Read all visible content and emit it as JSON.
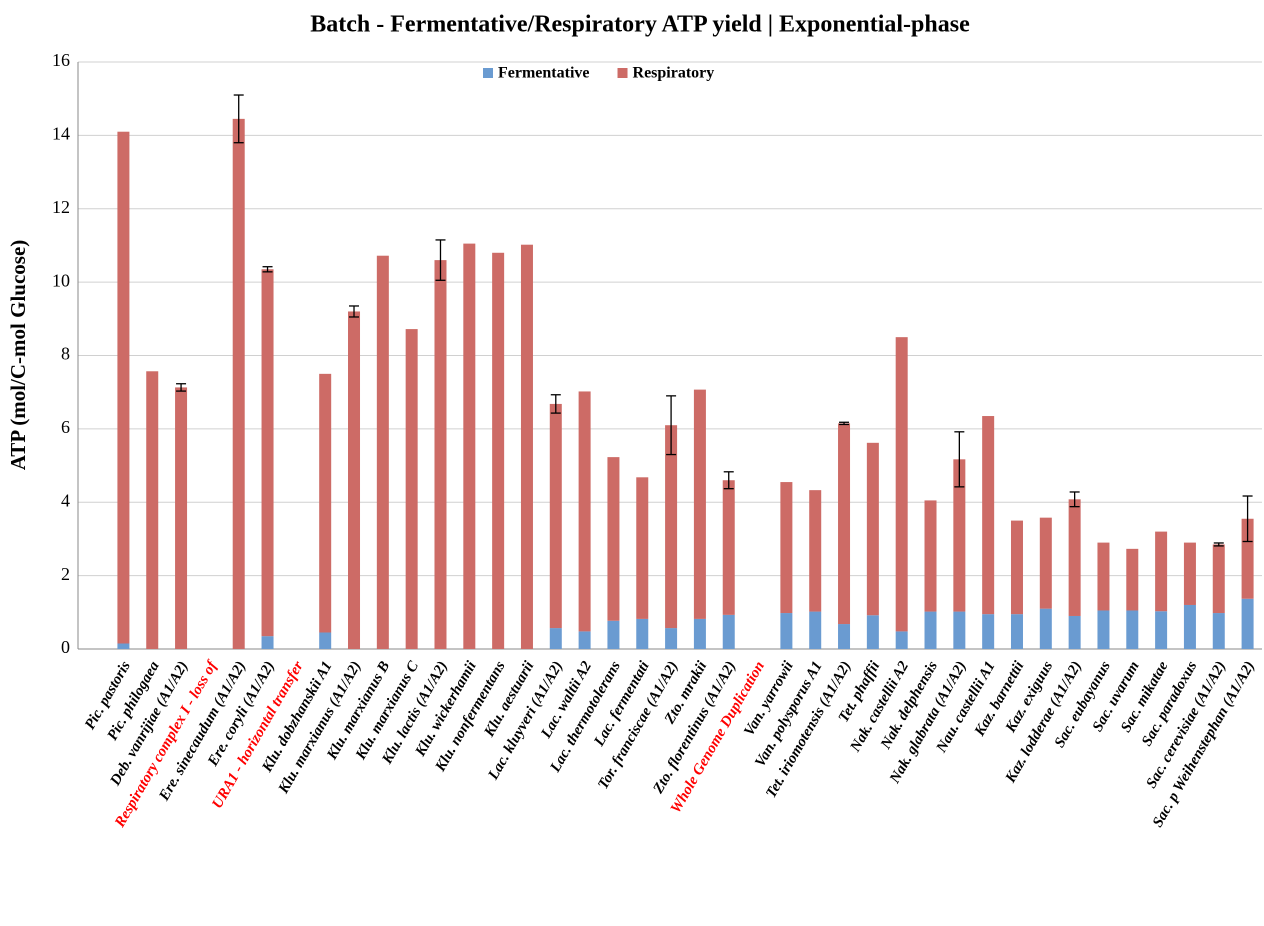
{
  "chart_data": {
    "type": "stacked_bar",
    "title": "Batch - Fermentative/Respiratory ATP yield | Exponential-phase",
    "y_label": "ATP (mol/C-mol Glucose)",
    "categories": [
      "Pic. pastoris",
      "Pic. philogaea",
      "Deb. vanrijiae (A1/A2)",
      "Respiratory complex I - loss of",
      "Ere. sinecaudum (A1/A2)",
      "Ere. coryli (A1/A2)",
      "URA1 - horizontal transfer",
      "Klu. dobzhanskii A1",
      "Klu. marxianus (A1/A2)",
      "Klu. marxianus B",
      "Klu. marxianus C",
      "Klu. lactis (A1/A2)",
      "Klu. wickerhamii",
      "Klu. nonfermentans",
      "Klu. aestuarii",
      "Lac. kluyveri (A1/A2)",
      "Lac. waltii A2",
      "Lac. thermotolerans",
      "Lac. fermentati",
      "Tor. franciscae (A1/A2)",
      "Zto. mrakii",
      "Zto. florentinus (A1/A2)",
      "Whole Genome Duplication",
      "Van. yarrowii",
      "Van. polysporus A1",
      "Tet. iriomotensis (A1/A2)",
      "Tet. phaffii",
      "Nak. castellii A2",
      "Nak. delphensis",
      "Nak. glabrata (A1/A2)",
      "Nau. castellii A1",
      "Kaz. barnettii",
      "Kaz. exiguus",
      "Kaz. lodderae (A1/A2)",
      "Sac. eubayanus",
      "Sac. uvarum",
      "Sac. mikatae",
      "Sac. paradoxus",
      "Sac. cerevisiae (A1/A2)",
      "Sac. p Weihenstephan (A1/A2)"
    ],
    "highlight": {
      "color": "#ff0000",
      "indices": [
        3,
        6,
        22
      ]
    },
    "series": [
      {
        "name": "Fermentative",
        "color": "#6a9bd1",
        "values": [
          0.15,
          0,
          0,
          null,
          0,
          0.35,
          null,
          0.45,
          0,
          0,
          0,
          0,
          0,
          0,
          0,
          0.57,
          0.48,
          0.77,
          0.82,
          0.57,
          0.82,
          0.93,
          null,
          0.98,
          1.02,
          0.68,
          0.92,
          0.48,
          1.02,
          1.02,
          0.95,
          0.95,
          1.1,
          0.9,
          1.05,
          1.05,
          1.03,
          1.2,
          0.98,
          1.37
        ]
      },
      {
        "name": "Respiratory",
        "color": "#cd6b66",
        "values": [
          13.95,
          7.57,
          7.13,
          null,
          14.45,
          10.0,
          null,
          7.05,
          9.2,
          10.72,
          8.72,
          10.6,
          11.05,
          10.8,
          11.02,
          6.11,
          6.54,
          4.46,
          3.86,
          5.53,
          6.25,
          3.67,
          null,
          3.57,
          3.31,
          5.47,
          4.7,
          8.02,
          3.03,
          4.15,
          5.4,
          2.55,
          2.48,
          3.18,
          1.85,
          1.68,
          2.17,
          1.7,
          1.87,
          2.18
        ],
        "errors": [
          null,
          null,
          0.1,
          null,
          0.65,
          0.07,
          null,
          null,
          0.15,
          null,
          null,
          0.55,
          null,
          null,
          null,
          0.25,
          null,
          null,
          null,
          0.8,
          null,
          0.23,
          null,
          null,
          null,
          0.03,
          null,
          null,
          null,
          0.75,
          null,
          null,
          null,
          0.2,
          null,
          null,
          null,
          null,
          0.04,
          0.62
        ]
      }
    ],
    "ylim": [
      0,
      16
    ],
    "yticks": [
      0,
      2,
      4,
      6,
      8,
      10,
      12,
      14,
      16
    ],
    "grid": true,
    "legend": "top"
  }
}
